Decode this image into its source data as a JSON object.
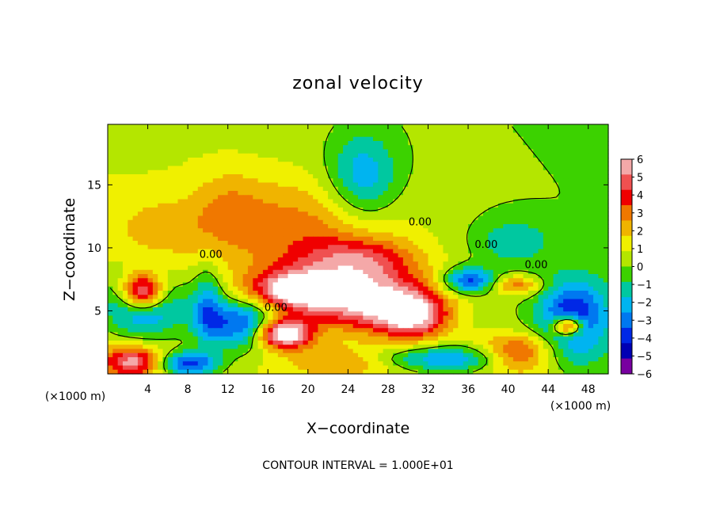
{
  "chart_data": {
    "type": "heatmap",
    "title": "zonal velocity",
    "xlabel": "X−coordinate",
    "ylabel": "Z−coordinate",
    "x_units_left": "(×1000 m)",
    "x_units_right": "(×1000 m)",
    "footer": "CONTOUR INTERVAL = 1.000E+01",
    "xlim": [
      0,
      50
    ],
    "ylim": [
      0,
      19.8
    ],
    "xticks": [
      4,
      8,
      12,
      16,
      20,
      24,
      28,
      32,
      36,
      40,
      44,
      48
    ],
    "xtick_labels": [
      "4",
      "8",
      "12",
      "16",
      "20",
      "24",
      "28",
      "32",
      "36",
      "40",
      "44",
      "48"
    ],
    "yticks": [
      5,
      10,
      15
    ],
    "ytick_labels": [
      "5",
      "10",
      "15"
    ],
    "colorbar": {
      "min": -6,
      "max": 6,
      "levels": [
        6,
        5,
        4,
        3,
        2,
        1,
        0,
        -1,
        -2,
        -3,
        -4,
        -5,
        -6
      ],
      "labels": [
        "6",
        "5",
        "4",
        "3",
        "2",
        "1",
        "0",
        "−1",
        "−2",
        "−3",
        "−4",
        "−5",
        "−6"
      ],
      "colors": [
        "#f4a8a8",
        "#f05050",
        "#f00000",
        "#f07800",
        "#f0b400",
        "#f0f000",
        "#b4e600",
        "#3cd200",
        "#00c8a0",
        "#00b4f0",
        "#0078f0",
        "#0028e6",
        "#0000b4",
        "#7800a0"
      ]
    },
    "contour_labels": [
      {
        "text": "0.00",
        "x": 10.3,
        "y": 9.2
      },
      {
        "text": "0.00",
        "x": 31.2,
        "y": 11.8
      },
      {
        "text": "0.00",
        "x": 37.8,
        "y": 10.0
      },
      {
        "text": "0.00",
        "x": 42.8,
        "y": 8.4
      },
      {
        "text": "0.00",
        "x": 16.8,
        "y": 5.0
      }
    ],
    "field_blobs": [
      {
        "x": 19.0,
        "y": 11.5,
        "sx": 10.0,
        "sy": 4.0,
        "v": 2.6
      },
      {
        "x": 12.0,
        "y": 13.5,
        "sx": 3.5,
        "sy": 3.0,
        "v": 1.2
      },
      {
        "x": 25.0,
        "y": 9.0,
        "sx": 6.0,
        "sy": 1.8,
        "v": 3.5
      },
      {
        "x": 26.0,
        "y": 5.8,
        "sx": 6.5,
        "sy": 2.3,
        "v": 6.0
      },
      {
        "x": 18.5,
        "y": 6.6,
        "sx": 4.5,
        "sy": 1.6,
        "v": 6.0
      },
      {
        "x": 30.5,
        "y": 4.5,
        "sx": 3.5,
        "sy": 1.8,
        "v": 5.0
      },
      {
        "x": 25.5,
        "y": 15.5,
        "sx": 3.5,
        "sy": 3.5,
        "v": -3.2
      },
      {
        "x": 40.5,
        "y": 10.5,
        "sx": 4.0,
        "sy": 2.0,
        "v": -1.8
      },
      {
        "x": 3.5,
        "y": 6.5,
        "sx": 2.2,
        "sy": 1.5,
        "v": 8.0
      },
      {
        "x": 3.5,
        "y": 5.5,
        "sx": 4.0,
        "sy": 2.5,
        "v": -5.0
      },
      {
        "x": 17.5,
        "y": 3.2,
        "sx": 2.8,
        "sy": 1.2,
        "v": 8.0
      },
      {
        "x": 13.5,
        "y": 4.0,
        "sx": 4.0,
        "sy": 2.0,
        "v": -5.0
      },
      {
        "x": 36.0,
        "y": 7.4,
        "sx": 2.5,
        "sy": 1.0,
        "v": -4.5
      },
      {
        "x": 41.0,
        "y": 7.0,
        "sx": 2.5,
        "sy": 0.8,
        "v": 3.0
      },
      {
        "x": 46.5,
        "y": 4.5,
        "sx": 3.5,
        "sy": 3.0,
        "v": -5.0
      },
      {
        "x": 46.0,
        "y": 3.8,
        "sx": 1.5,
        "sy": 0.8,
        "v": 7.0
      },
      {
        "x": 41.0,
        "y": 1.5,
        "sx": 4.0,
        "sy": 1.5,
        "v": 5.0
      },
      {
        "x": 34.0,
        "y": 1.2,
        "sx": 10.0,
        "sy": 1.0,
        "v": -3.5
      },
      {
        "x": 2.5,
        "y": 1.0,
        "sx": 3.0,
        "sy": 1.2,
        "v": 5.0
      },
      {
        "x": 8.0,
        "y": 0.8,
        "sx": 3.0,
        "sy": 1.0,
        "v": -5.0
      },
      {
        "x": 24.0,
        "y": 1.0,
        "sx": 6.0,
        "sy": 1.2,
        "v": 3.0
      },
      {
        "x": 10.0,
        "y": 5.5,
        "sx": 1.5,
        "sy": 3.0,
        "v": -3.0
      },
      {
        "x": 5.0,
        "y": 11.5,
        "sx": 5.0,
        "sy": 2.5,
        "v": 1.2
      }
    ],
    "background": {
      "v0": -0.2,
      "x_gain": -0.02,
      "base": 0.5
    }
  }
}
